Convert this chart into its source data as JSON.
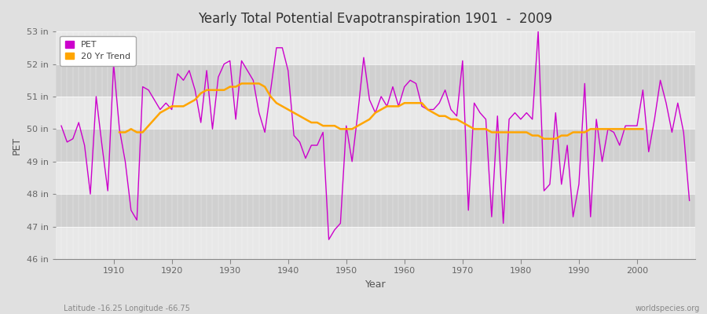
{
  "title": "Yearly Total Potential Evapotranspiration 1901  -  2009",
  "xlabel": "Year",
  "ylabel": "PET",
  "bottom_left_label": "Latitude -16.25 Longitude -66.75",
  "bottom_right_label": "worldspecies.org",
  "legend_pet": "PET",
  "legend_trend": "20 Yr Trend",
  "pet_color": "#CC00CC",
  "trend_color": "#FFA500",
  "fig_bg_color": "#E0E0E0",
  "plot_bg_color": "#DCDCDC",
  "band_color_light": "#E8E8E8",
  "band_color_dark": "#D0D0D0",
  "ylim": [
    46,
    53
  ],
  "yticks": [
    46,
    47,
    48,
    49,
    50,
    51,
    52,
    53
  ],
  "ytick_labels": [
    "46 in",
    "47 in",
    "48 in",
    "49 in",
    "50 in",
    "51 in",
    "52 in",
    "53 in"
  ],
  "xlim": [
    1900,
    2010
  ],
  "xticks": [
    1910,
    1920,
    1930,
    1940,
    1950,
    1960,
    1970,
    1980,
    1990,
    2000
  ],
  "years": [
    1901,
    1902,
    1903,
    1904,
    1905,
    1906,
    1907,
    1908,
    1909,
    1910,
    1911,
    1912,
    1913,
    1914,
    1915,
    1916,
    1917,
    1918,
    1919,
    1920,
    1921,
    1922,
    1923,
    1924,
    1925,
    1926,
    1927,
    1928,
    1929,
    1930,
    1931,
    1932,
    1933,
    1934,
    1935,
    1936,
    1937,
    1938,
    1939,
    1940,
    1941,
    1942,
    1943,
    1944,
    1945,
    1946,
    1947,
    1948,
    1949,
    1950,
    1951,
    1952,
    1953,
    1954,
    1955,
    1956,
    1957,
    1958,
    1959,
    1960,
    1961,
    1962,
    1963,
    1964,
    1965,
    1966,
    1967,
    1968,
    1969,
    1970,
    1971,
    1972,
    1973,
    1974,
    1975,
    1976,
    1977,
    1978,
    1979,
    1980,
    1981,
    1982,
    1983,
    1984,
    1985,
    1986,
    1987,
    1988,
    1989,
    1990,
    1991,
    1992,
    1993,
    1994,
    1995,
    1996,
    1997,
    1998,
    1999,
    2000,
    2001,
    2002,
    2003,
    2004,
    2005,
    2006,
    2007,
    2008,
    2009
  ],
  "pet_values": [
    50.1,
    49.6,
    49.7,
    50.2,
    49.5,
    48.0,
    51.0,
    49.5,
    48.1,
    52.0,
    50.0,
    49.0,
    47.5,
    47.2,
    51.3,
    51.2,
    50.9,
    50.6,
    50.8,
    50.6,
    51.7,
    51.5,
    51.8,
    51.2,
    50.2,
    51.8,
    50.0,
    51.6,
    52.0,
    52.1,
    50.3,
    52.1,
    51.8,
    51.5,
    50.5,
    49.9,
    51.2,
    52.5,
    52.5,
    51.8,
    49.8,
    49.6,
    49.1,
    49.5,
    49.5,
    49.9,
    46.6,
    46.9,
    47.1,
    50.1,
    49.0,
    50.5,
    52.2,
    50.9,
    50.5,
    51.0,
    50.7,
    51.3,
    50.7,
    51.3,
    51.5,
    51.4,
    50.7,
    50.6,
    50.6,
    50.8,
    51.2,
    50.6,
    50.4,
    52.1,
    47.5,
    50.8,
    50.5,
    50.3,
    47.3,
    50.4,
    47.1,
    50.3,
    50.5,
    50.3,
    50.5,
    50.3,
    53.0,
    48.1,
    48.3,
    50.5,
    48.3,
    49.5,
    47.3,
    48.3,
    51.4,
    47.3,
    50.3,
    49.0,
    50.0,
    49.9,
    49.5,
    50.1,
    50.1,
    50.1,
    51.2,
    49.3,
    50.3,
    51.5,
    50.8,
    49.9,
    50.8,
    49.9,
    47.8
  ],
  "trend_values": [
    null,
    null,
    null,
    null,
    null,
    null,
    null,
    null,
    null,
    null,
    49.9,
    49.9,
    50.0,
    49.9,
    49.9,
    50.1,
    50.3,
    50.5,
    50.6,
    50.7,
    50.7,
    50.7,
    50.8,
    50.9,
    51.1,
    51.2,
    51.2,
    51.2,
    51.2,
    51.3,
    51.3,
    51.4,
    51.4,
    51.4,
    51.4,
    51.3,
    51.0,
    50.8,
    50.7,
    50.6,
    50.5,
    50.4,
    50.3,
    50.2,
    50.2,
    50.1,
    50.1,
    50.1,
    50.0,
    50.0,
    50.0,
    50.1,
    50.2,
    50.3,
    50.5,
    50.6,
    50.7,
    50.7,
    50.7,
    50.8,
    50.8,
    50.8,
    50.8,
    50.6,
    50.5,
    50.4,
    50.4,
    50.3,
    50.3,
    50.2,
    50.1,
    50.0,
    50.0,
    50.0,
    49.9,
    49.9,
    49.9,
    49.9,
    49.9,
    49.9,
    49.9,
    49.8,
    49.8,
    49.7,
    49.7,
    49.7,
    49.8,
    49.8,
    49.9,
    49.9,
    49.9,
    50.0,
    50.0,
    50.0,
    50.0,
    50.0,
    50.0,
    50.0,
    50.0,
    50.0,
    50.0,
    null,
    null,
    null,
    null,
    null,
    null,
    null,
    null
  ]
}
